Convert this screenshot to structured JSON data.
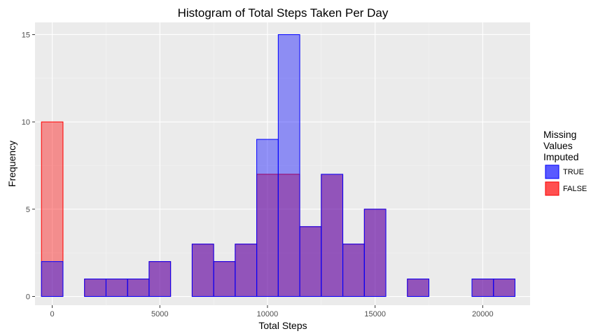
{
  "chart_data": {
    "type": "bar",
    "title": "Histogram of Total Steps Taken Per Day",
    "xlabel": "Total Steps",
    "ylabel": "Frequency",
    "xlim": [
      -800,
      22200
    ],
    "ylim": [
      -0.5,
      15.7
    ],
    "binwidth": 1000,
    "x_ticks": [
      0,
      5000,
      10000,
      15000,
      20000
    ],
    "y_ticks": [
      0,
      5,
      10,
      15
    ],
    "bin_centers": [
      0,
      1000,
      2000,
      3000,
      4000,
      5000,
      6000,
      7000,
      8000,
      9000,
      10000,
      11000,
      12000,
      13000,
      14000,
      15000,
      16000,
      17000,
      18000,
      19000,
      20000,
      21000
    ],
    "series": [
      {
        "name": "FALSE",
        "fill": "#F8766D",
        "fill_color": "#FF0000",
        "border": "#FF0000",
        "values": [
          10,
          0,
          1,
          1,
          1,
          2,
          0,
          3,
          2,
          3,
          7,
          7,
          4,
          7,
          3,
          5,
          0,
          1,
          0,
          0,
          1,
          1
        ]
      },
      {
        "name": "TRUE",
        "fill_color": "#0000FF",
        "border": "#0000FF",
        "values": [
          2,
          0,
          1,
          1,
          1,
          2,
          0,
          3,
          2,
          3,
          9,
          15,
          4,
          7,
          3,
          5,
          0,
          1,
          0,
          0,
          1,
          1
        ]
      }
    ],
    "grid": true,
    "legend": {
      "title_lines": [
        "Missing",
        "Values",
        "Imputed"
      ],
      "entries": [
        "TRUE",
        "FALSE"
      ],
      "placement": "right"
    }
  }
}
